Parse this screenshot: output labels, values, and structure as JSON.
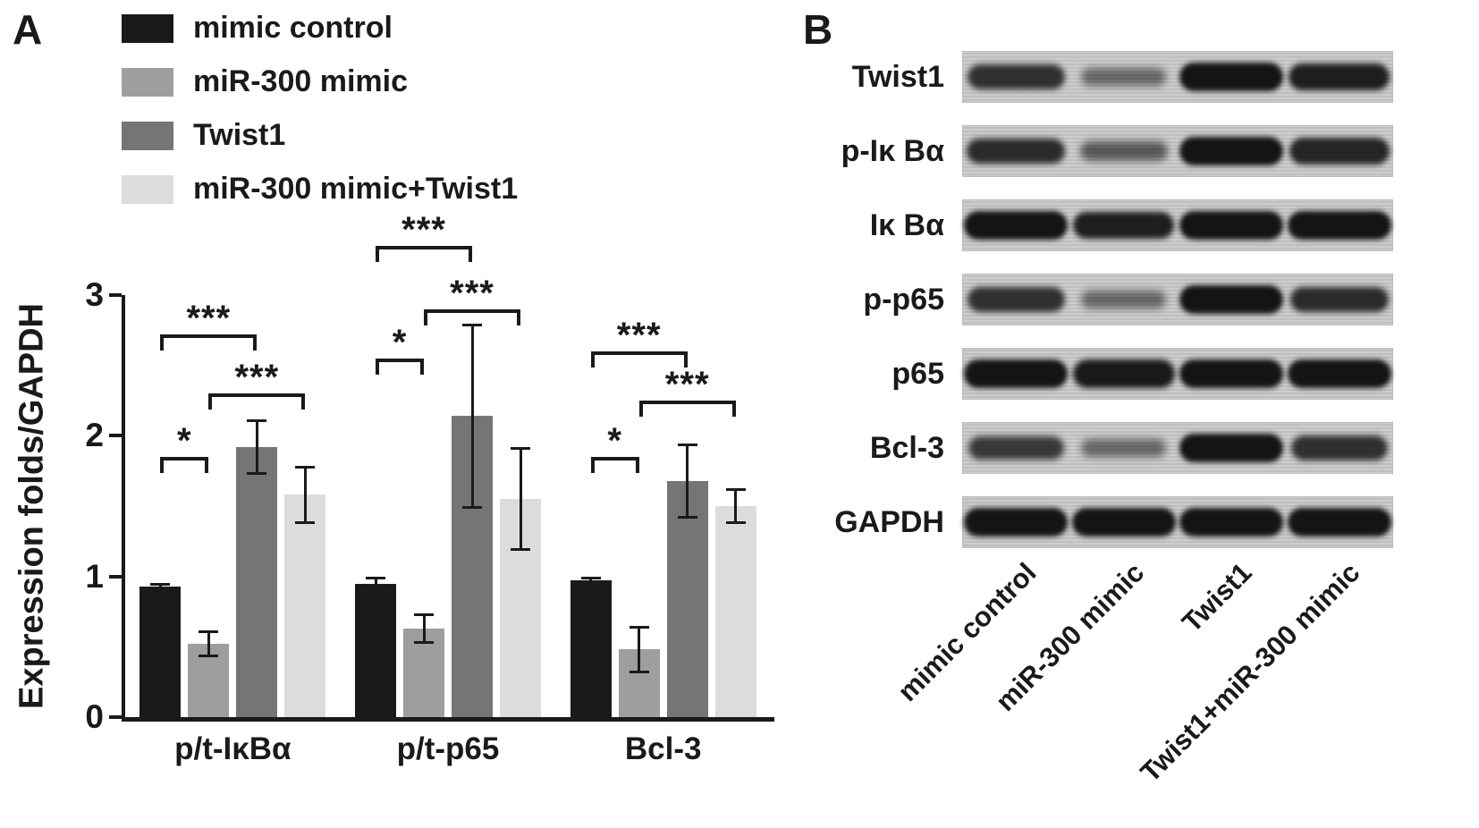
{
  "panel_a": {
    "label": "A"
  },
  "panel_b": {
    "label": "B",
    "rows": [
      {
        "label": "Twist1",
        "intensities": [
          0.75,
          0.3,
          1.0,
          0.9
        ]
      },
      {
        "label": "p-Iκ Bα",
        "intensities": [
          0.8,
          0.4,
          1.0,
          0.85
        ]
      },
      {
        "label": "Iκ Bα",
        "intensities": [
          1.0,
          0.9,
          1.0,
          1.0
        ]
      },
      {
        "label": "p-p65",
        "intensities": [
          0.75,
          0.3,
          1.0,
          0.8
        ]
      },
      {
        "label": "p65",
        "intensities": [
          1.0,
          0.95,
          1.0,
          1.0
        ]
      },
      {
        "label": "Bcl-3",
        "intensities": [
          0.7,
          0.3,
          1.0,
          0.75
        ]
      },
      {
        "label": "GAPDH",
        "intensities": [
          1.0,
          1.0,
          1.0,
          1.0
        ]
      }
    ],
    "lanes": [
      "mimic control",
      "miR-300 mimic",
      "Twist1",
      "Twist1+miR-300 mimic"
    ]
  },
  "chart_data": {
    "type": "bar",
    "title": "",
    "xlabel": "",
    "ylabel": "Expression folds/GAPDH",
    "ylim": [
      0,
      3
    ],
    "yticks": [
      0,
      1,
      2,
      3
    ],
    "grid": false,
    "legend_position": "top-left",
    "categories": [
      "p/t-IκBα",
      "p/t-p65",
      "Bcl-3"
    ],
    "series": [
      {
        "name": "mimic control",
        "color": "#1a1a1a",
        "values": [
          0.93,
          0.95,
          0.97
        ],
        "errors": [
          0.02,
          0.04,
          0.02
        ]
      },
      {
        "name": "miR-300 mimic",
        "color": "#9e9e9e",
        "values": [
          0.52,
          0.63,
          0.48
        ],
        "errors": [
          0.09,
          0.1,
          0.16
        ]
      },
      {
        "name": "Twist1",
        "color": "#757575",
        "values": [
          1.92,
          2.14,
          1.68
        ],
        "errors": [
          0.19,
          0.65,
          0.26
        ]
      },
      {
        "name": "miR-300 mimic+Twist1",
        "color": "#dcdcdc",
        "values": [
          1.58,
          1.55,
          1.5
        ],
        "errors": [
          0.2,
          0.36,
          0.12
        ]
      }
    ],
    "significance": [
      {
        "group": 0,
        "from": 0,
        "to": 1,
        "label": "*",
        "y": 1.85
      },
      {
        "group": 0,
        "from": 0,
        "to": 2,
        "label": "***",
        "y": 2.72
      },
      {
        "group": 0,
        "from": 1,
        "to": 3,
        "label": "***",
        "y": 2.3
      },
      {
        "group": 1,
        "from": 0,
        "to": 1,
        "label": "*",
        "y": 2.55
      },
      {
        "group": 1,
        "from": 0,
        "to": 2,
        "label": "***",
        "y": 3.35
      },
      {
        "group": 1,
        "from": 1,
        "to": 3,
        "label": "***",
        "y": 2.9
      },
      {
        "group": 2,
        "from": 0,
        "to": 1,
        "label": "*",
        "y": 1.85
      },
      {
        "group": 2,
        "from": 0,
        "to": 2,
        "label": "***",
        "y": 2.6
      },
      {
        "group": 2,
        "from": 1,
        "to": 3,
        "label": "***",
        "y": 2.25
      }
    ]
  }
}
